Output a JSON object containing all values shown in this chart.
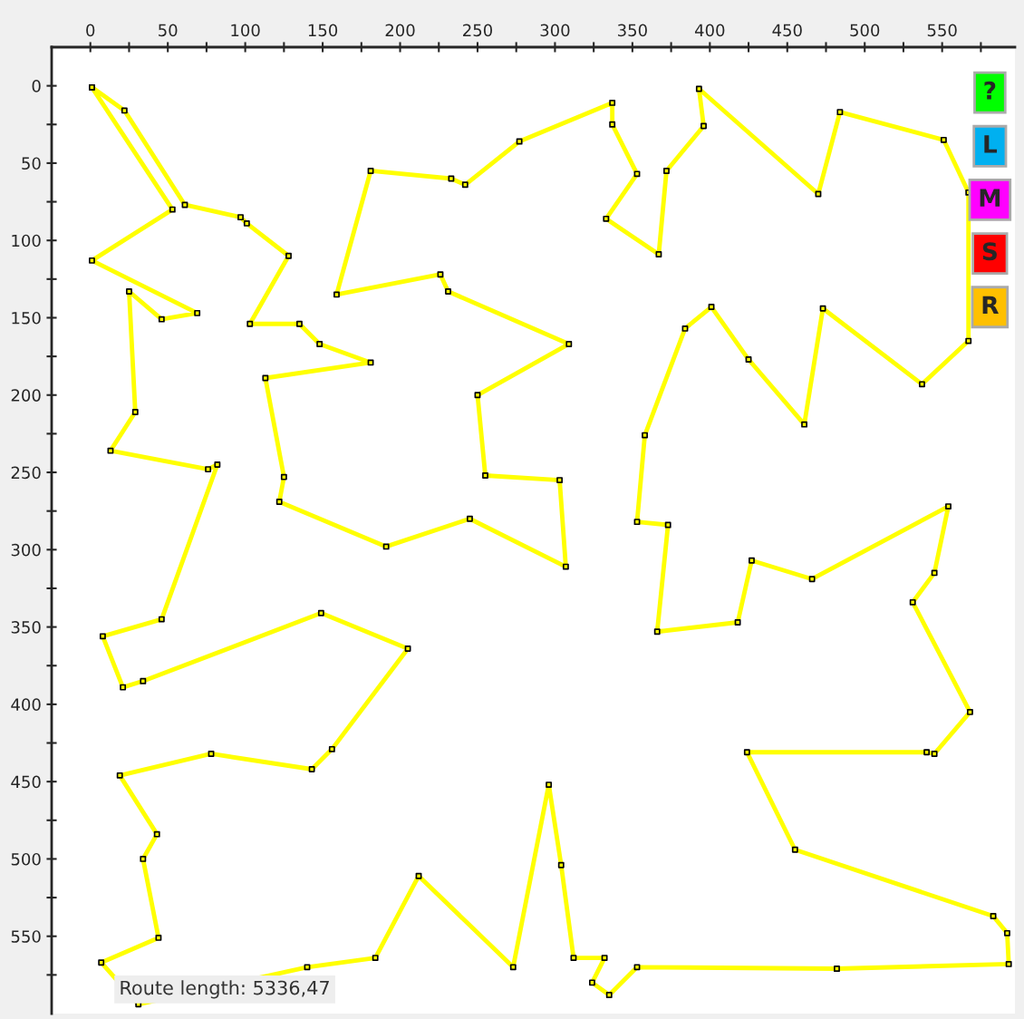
{
  "chart_data": {
    "type": "scatter",
    "xlim": [
      -25,
      597
    ],
    "ylim": [
      600,
      -25
    ],
    "xticks": [
      0,
      {
        "value": 25,
        "label": null
      },
      50,
      {
        "value": 75,
        "label": null
      },
      100,
      {
        "value": 125,
        "label": null
      },
      150,
      {
        "value": 175,
        "label": null
      },
      200,
      {
        "value": 225,
        "label": null
      },
      250,
      {
        "value": 275,
        "label": null
      },
      300,
      {
        "value": 325,
        "label": null
      },
      350,
      {
        "value": 375,
        "label": null
      },
      400,
      {
        "value": 425,
        "label": null
      },
      450,
      {
        "value": 475,
        "label": null
      },
      500,
      {
        "value": 525,
        "label": null
      },
      550,
      {
        "value": 575,
        "label": null
      }
    ],
    "yticks": [
      0,
      {
        "value": 25,
        "label": null
      },
      50,
      {
        "value": 75,
        "label": null
      },
      100,
      {
        "value": 125,
        "label": null
      },
      150,
      {
        "value": 175,
        "label": null
      },
      200,
      {
        "value": 225,
        "label": null
      },
      250,
      {
        "value": 275,
        "label": null
      },
      300,
      {
        "value": 325,
        "label": null
      },
      350,
      {
        "value": 375,
        "label": null
      },
      400,
      {
        "value": 425,
        "label": null
      },
      450,
      {
        "value": 475,
        "label": null
      },
      500,
      {
        "value": 525,
        "label": null
      },
      550,
      {
        "value": 575,
        "label": null
      }
    ],
    "grid": false,
    "legend": false,
    "marker": "square",
    "line_style": "solid",
    "annotations": [
      "Route length: 5336,47",
      "?",
      "L",
      "M",
      "S",
      "R"
    ],
    "x": [
      1,
      22,
      61,
      97,
      101,
      128,
      103,
      135,
      148,
      181,
      113,
      125,
      122,
      191,
      245,
      307,
      303,
      255,
      250,
      309,
      231,
      226,
      159,
      181,
      233,
      242,
      277,
      337,
      337,
      353,
      333,
      367,
      372,
      396,
      393,
      470,
      484,
      551,
      567,
      null,
      null,
      567,
      537,
      473,
      461,
      425,
      401,
      384,
      358,
      353,
      373,
      366,
      418,
      427,
      466,
      554,
      545,
      531,
      568,
      545,
      540,
      424,
      455,
      583,
      592,
      593,
      482,
      353,
      335,
      324,
      332,
      312,
      304,
      296,
      273,
      212,
      184,
      140,
      null,
      31,
      7,
      44,
      34,
      43,
      19,
      78,
      143,
      156,
      205,
      149,
      34,
      21,
      8,
      46,
      82,
      76,
      13,
      29,
      25,
      46,
      69,
      1,
      53,
      1
    ],
    "series": [
      {
        "color": "#ffff00",
        "values": [
          1,
          16,
          77,
          85,
          89,
          110,
          154,
          154,
          167,
          179,
          189,
          253,
          269,
          298,
          280,
          311,
          255,
          252,
          200,
          167,
          133,
          122,
          135,
          55,
          60,
          64,
          36,
          11,
          25,
          57,
          86,
          109,
          55,
          26,
          2,
          70,
          17,
          35,
          69,
          null,
          null,
          165,
          193,
          144,
          219,
          177,
          143,
          157,
          226,
          282,
          284,
          353,
          347,
          307,
          319,
          272,
          315,
          334,
          405,
          432,
          431,
          431,
          494,
          537,
          548,
          568,
          571,
          570,
          588,
          580,
          564,
          564,
          504,
          452,
          570,
          511,
          564,
          570,
          null,
          594,
          567,
          551,
          500,
          484,
          446,
          432,
          442,
          429,
          364,
          341,
          385,
          389,
          356,
          345,
          245,
          248,
          236,
          211,
          133,
          151,
          147,
          113,
          80,
          1
        ]
      }
    ]
  }
}
